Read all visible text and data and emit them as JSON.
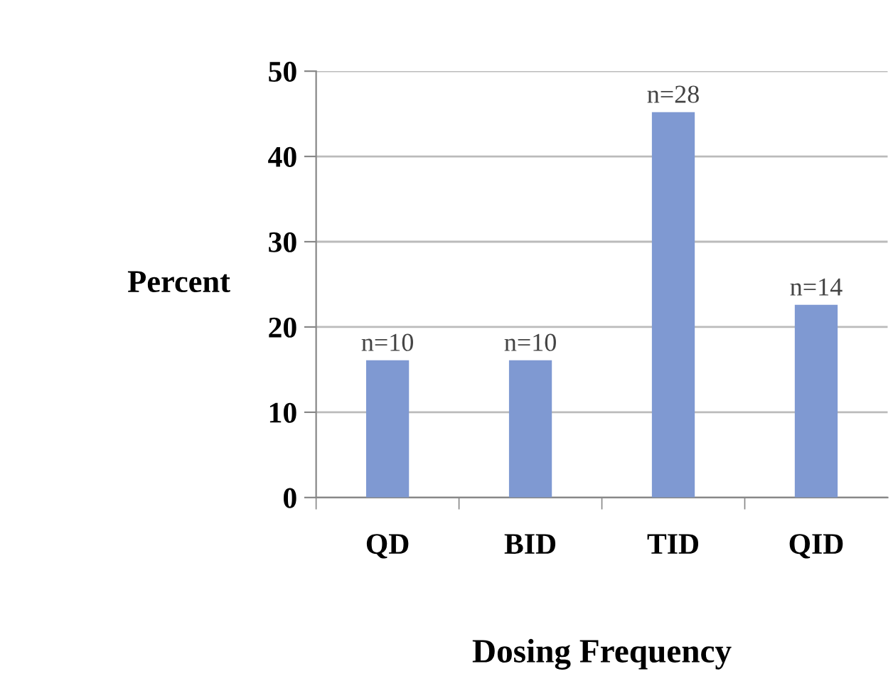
{
  "chart_data": {
    "type": "bar",
    "ylabel": "Percent",
    "xlabel": "Dosing Frequency",
    "categories": [
      "QD",
      "BID",
      "TID",
      "QID"
    ],
    "values": [
      16.1,
      16.1,
      45.2,
      22.6
    ],
    "annotations": [
      {
        "text": "n=10",
        "x": "QD",
        "y": 16.1
      },
      {
        "text": "n=10",
        "x": "BID",
        "y": 16.1
      },
      {
        "text": "n=28",
        "x": "TID",
        "y": 45.2
      },
      {
        "text": "n=14",
        "x": "QID",
        "y": 22.6
      }
    ],
    "color": "#7f99d2",
    "ylim": [
      0,
      50
    ],
    "yticks": [
      0,
      10,
      20,
      30,
      40,
      50
    ],
    "grid": "y"
  }
}
